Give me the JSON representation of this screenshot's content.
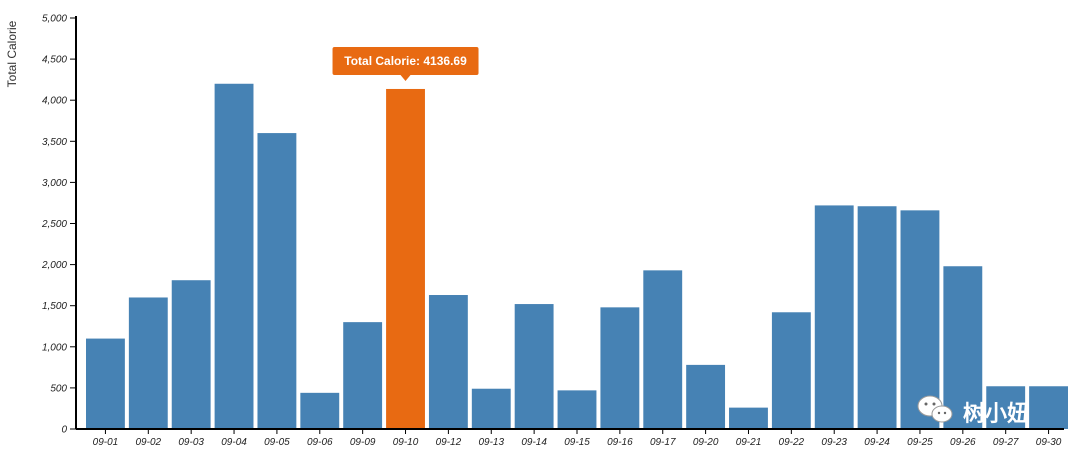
{
  "chart_data": {
    "type": "bar",
    "title": "",
    "xlabel": "",
    "ylabel": "Total Calorie",
    "ylim": [
      0,
      5000
    ],
    "yticks": [
      0,
      500,
      1000,
      1500,
      2000,
      2500,
      3000,
      3500,
      4000,
      4500,
      5000
    ],
    "ytick_labels": [
      "0",
      "500",
      "1,000",
      "1,500",
      "2,000",
      "2,500",
      "3,000",
      "3,500",
      "4,000",
      "4,500",
      "5,000"
    ],
    "categories": [
      "09-01",
      "09-02",
      "09-03",
      "09-04",
      "09-05",
      "09-06",
      "09-09",
      "09-10",
      "09-12",
      "09-13",
      "09-14",
      "09-15",
      "09-16",
      "09-17",
      "09-20",
      "09-21",
      "09-22",
      "09-23",
      "09-24",
      "09-25",
      "09-26",
      "09-27",
      "09-30"
    ],
    "values": [
      1100,
      1600,
      1810,
      4200,
      3600,
      440,
      1300,
      4136.69,
      1630,
      490,
      1520,
      470,
      1480,
      1930,
      780,
      260,
      1420,
      2720,
      2710,
      2660,
      1980,
      520,
      520
    ],
    "bar_color": "#4682b4",
    "highlight_color": "#e86a12",
    "highlighted_category": "09-10",
    "grid": false
  },
  "tooltip": {
    "label": "Total Calorie: 4136.69",
    "color": "#e86a12"
  },
  "watermark": {
    "text": "树小妞",
    "icon": "wechat-icon"
  }
}
